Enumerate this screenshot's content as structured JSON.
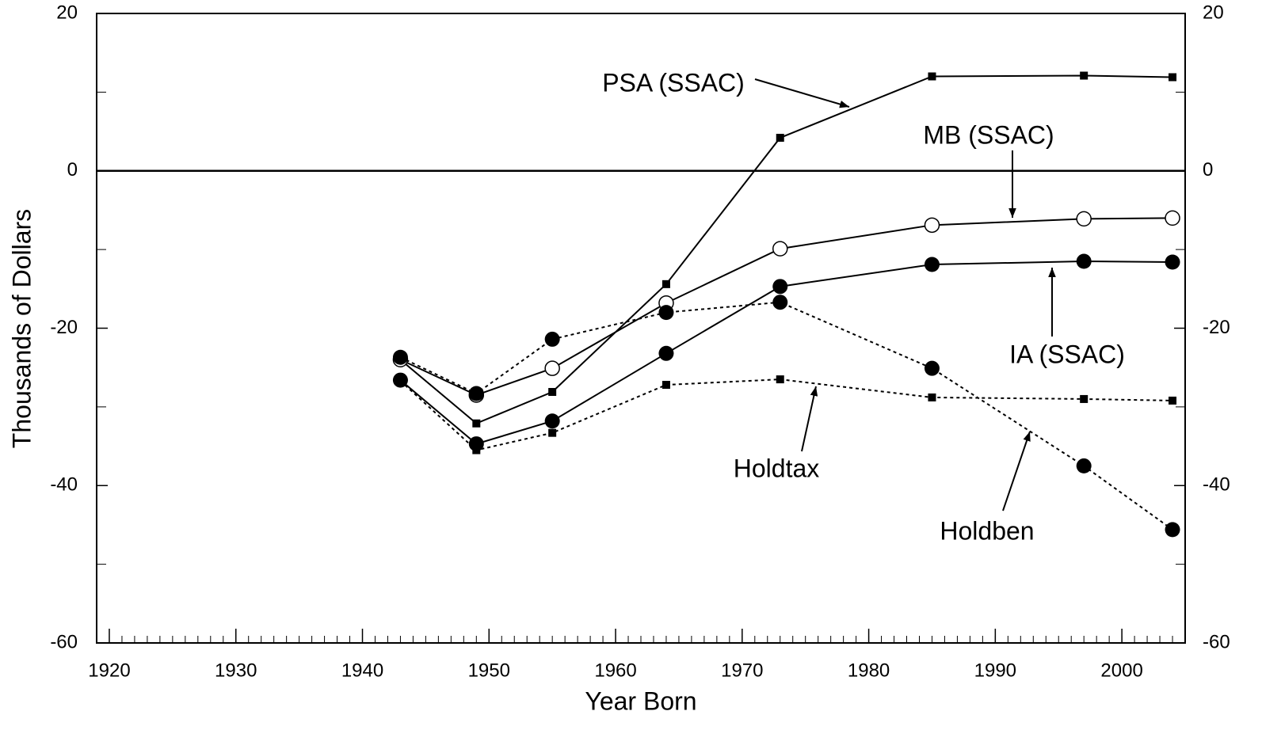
{
  "chart_data": {
    "type": "line",
    "x_label": "Year Born",
    "y_label": "Thousands of Dollars",
    "x": [
      1943,
      1949,
      1955,
      1964,
      1973,
      1985,
      1997,
      2004
    ],
    "series": [
      {
        "name": "PSA (SSAC)",
        "color": "#000000",
        "dash": "solid",
        "marker": "square",
        "values": [
          -24.0,
          -32.1,
          -28.1,
          -14.4,
          4.2,
          12.0,
          12.1,
          11.9
        ]
      },
      {
        "name": "MB (SSAC)",
        "color": "#000000",
        "dash": "solid",
        "marker": "open-circle",
        "values": [
          -24.0,
          -28.5,
          -25.1,
          -16.8,
          -9.9,
          -6.9,
          -6.1,
          -6.0
        ]
      },
      {
        "name": "IA (SSAC)",
        "color": "#000000",
        "dash": "solid",
        "marker": "circle",
        "values": [
          -26.6,
          -34.7,
          -31.8,
          -23.2,
          -14.7,
          -11.9,
          -11.5,
          -11.6
        ]
      },
      {
        "name": "Holdtax",
        "color": "#000000",
        "dash": "dotted",
        "marker": "square",
        "values": [
          -26.7,
          -35.5,
          -33.3,
          -27.2,
          -26.5,
          -28.8,
          -29.0,
          -29.2
        ]
      },
      {
        "name": "Holdben",
        "color": "#000000",
        "dash": "dotted",
        "marker": "circle",
        "values": [
          -23.7,
          -28.3,
          -21.4,
          -18.0,
          -16.7,
          -25.1,
          -37.5,
          -45.6
        ]
      }
    ],
    "xlim": [
      1919,
      2005
    ],
    "xticks": [
      1920,
      1930,
      1940,
      1950,
      1960,
      1970,
      1980,
      1990,
      2000
    ],
    "x_minor_step": 1,
    "ylim": [
      -60,
      20
    ],
    "yticks": [
      -60,
      -40,
      -20,
      0,
      20
    ],
    "y_minor_step": 10,
    "right_axis_labels": true,
    "zero_line": true
  }
}
